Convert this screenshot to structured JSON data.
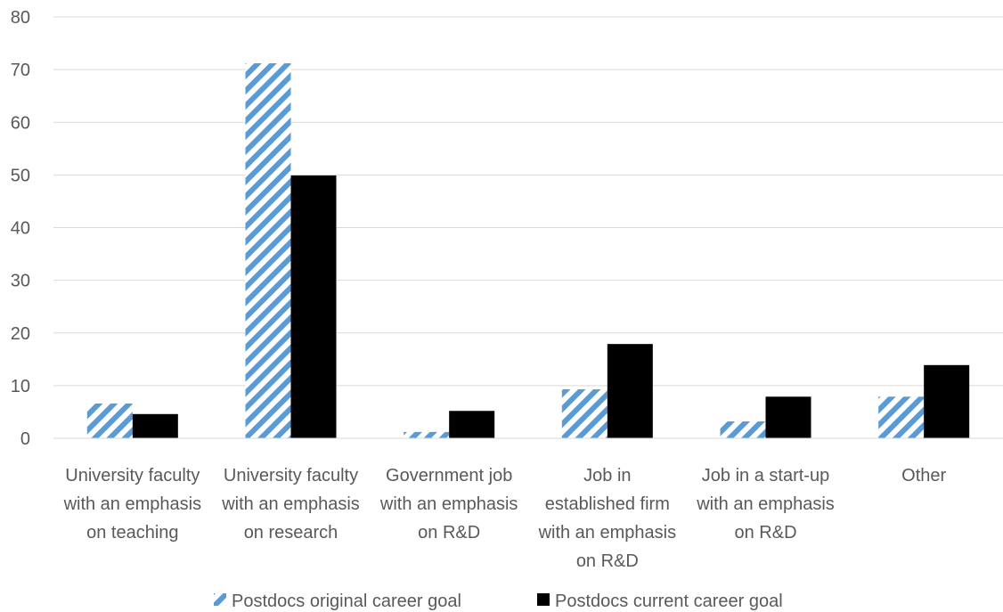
{
  "chart_data": {
    "type": "bar",
    "categories": [
      [
        "University faculty",
        "with an emphasis",
        "on teaching"
      ],
      [
        "University faculty",
        "with an emphasis",
        "on research"
      ],
      [
        "Government job",
        "with an emphasis",
        "on R&D"
      ],
      [
        "Job in",
        "established firm",
        "with an emphasis",
        "on R&D"
      ],
      [
        "Job in a start-up",
        "with an emphasis",
        "on R&D"
      ],
      [
        "Other"
      ]
    ],
    "series": [
      {
        "name": "Postdocs original career goal",
        "values": [
          6.6,
          71.2,
          1.2,
          9.3,
          3.2,
          7.9
        ],
        "color": "#5b9bd5",
        "pattern": "diagonal-stripes"
      },
      {
        "name": "Postdocs current career goal",
        "values": [
          4.6,
          49.9,
          5.2,
          17.9,
          7.9,
          13.9
        ],
        "color": "#000000",
        "pattern": "solid"
      }
    ],
    "yticks": [
      0,
      10,
      20,
      30,
      40,
      50,
      60,
      70,
      80
    ],
    "ylim": [
      0,
      80
    ],
    "grid": true,
    "legend_position": "bottom"
  }
}
